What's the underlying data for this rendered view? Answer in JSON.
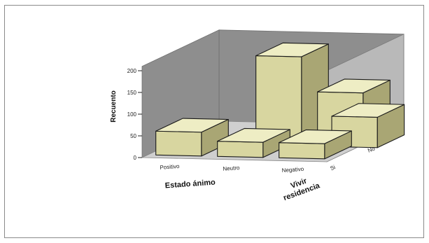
{
  "chart_data": {
    "type": "bar",
    "subtype": "3d-bar",
    "title": "",
    "ylabel": "Recuento",
    "xlabel": "Estado ánimo",
    "zlabel": [
      "Vivir",
      "residencia"
    ],
    "categories": [
      "Positivo",
      "Neutro",
      "Negativo"
    ],
    "depth_categories": [
      "Si",
      "No"
    ],
    "ylim": [
      0,
      200
    ],
    "yticks": [
      0,
      50,
      100,
      150,
      200
    ],
    "series": [
      {
        "name": "Si",
        "values": [
          55,
          35,
          35
        ]
      },
      {
        "name": "No",
        "values": [
          0,
          190,
          110
        ]
      }
    ],
    "extra_bars": [
      {
        "category": "Negativo",
        "depth": "No",
        "value": 70
      }
    ],
    "colors": {
      "bar_front": "#d8d6a0",
      "bar_top": "#eeedc4",
      "bar_side": "#a9a674",
      "wall_back": "#8e8e8e",
      "wall_side": "#b9b9b9",
      "floor": "#cfcfcf"
    }
  }
}
